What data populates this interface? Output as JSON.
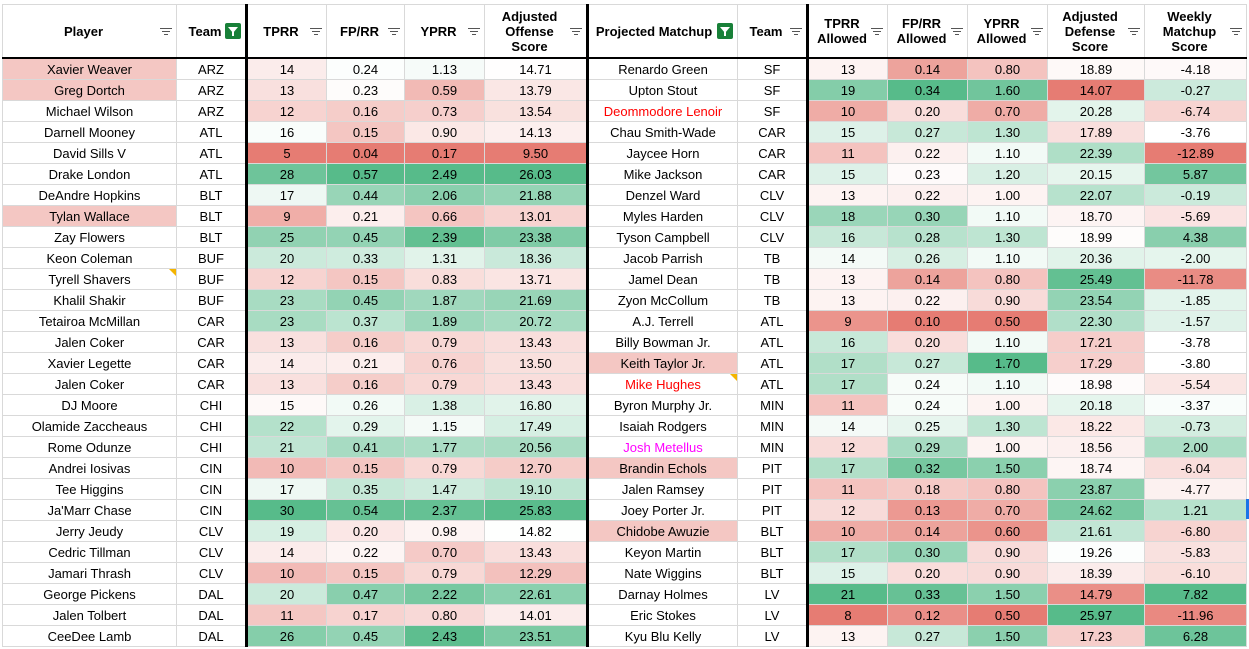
{
  "headers": {
    "player": "Player",
    "team": "Team",
    "tprr": "TPRR",
    "fprr": "FP/RR",
    "yprr": "YPRR",
    "aos_l1": "Adjusted",
    "aos_l2": "Offense",
    "aos_l3": "Score",
    "matchup": "Projected Matchup",
    "team2": "Team",
    "tprra_l1": "TPRR",
    "tprra_l2": "Allowed",
    "fprra_l1": "FP/RR",
    "fprra_l2": "Allowed",
    "yprra_l1": "YPRR",
    "yprra_l2": "Allowed",
    "ads_l1": "Adjusted",
    "ads_l2": "Defense",
    "ads_l3": "Score",
    "wms_l1": "Weekly",
    "wms_l2": "Matchup",
    "wms_l3": "Score"
  },
  "colors": {
    "red_max": "#e67c73",
    "green_max": "#57bb8a",
    "white": "#ffffff",
    "player_highlight": "#f4c7c3",
    "red_text": "#ff0000",
    "magenta_text": "#ff00ff",
    "filter_active": "#188038"
  },
  "rows": [
    {
      "player": "Xavier Weaver",
      "team": "ARZ",
      "tprr": "14",
      "fprr": "0.24",
      "yprr": "1.13",
      "aos": "14.71",
      "matchup": "Renardo Green",
      "team2": "SF",
      "tprra": "13",
      "fprra": "0.14",
      "yprra": "0.80",
      "ads": "18.89",
      "wms": "-4.18",
      "p_hl": true
    },
    {
      "player": "Greg Dortch",
      "team": "ARZ",
      "tprr": "13",
      "fprr": "0.23",
      "yprr": "0.59",
      "aos": "13.79",
      "matchup": "Upton Stout",
      "team2": "SF",
      "tprra": "19",
      "fprra": "0.34",
      "yprra": "1.60",
      "ads": "14.07",
      "wms": "-0.27",
      "p_hl": true
    },
    {
      "player": "Michael Wilson",
      "team": "ARZ",
      "tprr": "12",
      "fprr": "0.16",
      "yprr": "0.73",
      "aos": "13.54",
      "matchup": "Deommodore Lenoir",
      "team2": "SF",
      "tprra": "10",
      "fprra": "0.20",
      "yprra": "0.70",
      "ads": "20.28",
      "wms": "-6.74",
      "m_color": "red"
    },
    {
      "player": "Darnell Mooney",
      "team": "ATL",
      "tprr": "16",
      "fprr": "0.15",
      "yprr": "0.90",
      "aos": "14.13",
      "matchup": "Chau Smith-Wade",
      "team2": "CAR",
      "tprra": "15",
      "fprra": "0.27",
      "yprra": "1.30",
      "ads": "17.89",
      "wms": "-3.76"
    },
    {
      "player": "David Sills V",
      "team": "ATL",
      "tprr": "5",
      "fprr": "0.04",
      "yprr": "0.17",
      "aos": "9.50",
      "matchup": "Jaycee Horn",
      "team2": "CAR",
      "tprra": "11",
      "fprra": "0.22",
      "yprra": "1.10",
      "ads": "22.39",
      "wms": "-12.89"
    },
    {
      "player": "Drake London",
      "team": "ATL",
      "tprr": "28",
      "fprr": "0.57",
      "yprr": "2.49",
      "aos": "26.03",
      "matchup": "Mike Jackson",
      "team2": "CAR",
      "tprra": "15",
      "fprra": "0.23",
      "yprra": "1.20",
      "ads": "20.15",
      "wms": "5.87"
    },
    {
      "player": "DeAndre Hopkins",
      "team": "BLT",
      "tprr": "17",
      "fprr": "0.44",
      "yprr": "2.06",
      "aos": "21.88",
      "matchup": "Denzel Ward",
      "team2": "CLV",
      "tprra": "13",
      "fprra": "0.22",
      "yprra": "1.00",
      "ads": "22.07",
      "wms": "-0.19"
    },
    {
      "player": "Tylan Wallace",
      "team": "BLT",
      "tprr": "9",
      "fprr": "0.21",
      "yprr": "0.66",
      "aos": "13.01",
      "matchup": "Myles Harden",
      "team2": "CLV",
      "tprra": "18",
      "fprra": "0.30",
      "yprra": "1.10",
      "ads": "18.70",
      "wms": "-5.69",
      "p_hl": true
    },
    {
      "player": "Zay Flowers",
      "team": "BLT",
      "tprr": "25",
      "fprr": "0.45",
      "yprr": "2.39",
      "aos": "23.38",
      "matchup": "Tyson Campbell",
      "team2": "CLV",
      "tprra": "16",
      "fprra": "0.28",
      "yprra": "1.30",
      "ads": "18.99",
      "wms": "4.38"
    },
    {
      "player": "Keon Coleman",
      "team": "BUF",
      "tprr": "20",
      "fprr": "0.33",
      "yprr": "1.31",
      "aos": "18.36",
      "matchup": "Jacob Parrish",
      "team2": "TB",
      "tprra": "14",
      "fprra": "0.26",
      "yprra": "1.10",
      "ads": "20.36",
      "wms": "-2.00"
    },
    {
      "player": "Tyrell Shavers",
      "team": "BUF",
      "tprr": "12",
      "fprr": "0.15",
      "yprr": "0.83",
      "aos": "13.71",
      "matchup": "Jamel Dean",
      "team2": "TB",
      "tprra": "13",
      "fprra": "0.14",
      "yprra": "0.80",
      "ads": "25.49",
      "wms": "-11.78",
      "p_note": true
    },
    {
      "player": "Khalil Shakir",
      "team": "BUF",
      "tprr": "23",
      "fprr": "0.45",
      "yprr": "1.87",
      "aos": "21.69",
      "matchup": "Zyon McCollum",
      "team2": "TB",
      "tprra": "13",
      "fprra": "0.22",
      "yprra": "0.90",
      "ads": "23.54",
      "wms": "-1.85"
    },
    {
      "player": "Tetairoa McMillan",
      "team": "CAR",
      "tprr": "23",
      "fprr": "0.37",
      "yprr": "1.89",
      "aos": "20.72",
      "matchup": "A.J. Terrell",
      "team2": "ATL",
      "tprra": "9",
      "fprra": "0.10",
      "yprra": "0.50",
      "ads": "22.30",
      "wms": "-1.57"
    },
    {
      "player": "Jalen Coker",
      "team": "CAR",
      "tprr": "13",
      "fprr": "0.16",
      "yprr": "0.79",
      "aos": "13.43",
      "matchup": "Billy Bowman Jr.",
      "team2": "ATL",
      "tprra": "16",
      "fprra": "0.20",
      "yprra": "1.10",
      "ads": "17.21",
      "wms": "-3.78"
    },
    {
      "player": "Xavier Legette",
      "team": "CAR",
      "tprr": "14",
      "fprr": "0.21",
      "yprr": "0.76",
      "aos": "13.50",
      "matchup": "Keith Taylor Jr.",
      "team2": "ATL",
      "tprra": "17",
      "fprra": "0.27",
      "yprra": "1.70",
      "ads": "17.29",
      "wms": "-3.80",
      "m_hl": true
    },
    {
      "player": "Jalen Coker",
      "team": "CAR",
      "tprr": "13",
      "fprr": "0.16",
      "yprr": "0.79",
      "aos": "13.43",
      "matchup": "Mike Hughes",
      "team2": "ATL",
      "tprra": "17",
      "fprra": "0.24",
      "yprra": "1.10",
      "ads": "18.98",
      "wms": "-5.54",
      "m_color": "red",
      "m_note": true
    },
    {
      "player": "DJ Moore",
      "team": "CHI",
      "tprr": "15",
      "fprr": "0.26",
      "yprr": "1.38",
      "aos": "16.80",
      "matchup": "Byron Murphy Jr.",
      "team2": "MIN",
      "tprra": "11",
      "fprra": "0.24",
      "yprra": "1.00",
      "ads": "20.18",
      "wms": "-3.37"
    },
    {
      "player": "Olamide Zaccheaus",
      "team": "CHI",
      "tprr": "22",
      "fprr": "0.29",
      "yprr": "1.15",
      "aos": "17.49",
      "matchup": "Isaiah Rodgers",
      "team2": "MIN",
      "tprra": "14",
      "fprra": "0.25",
      "yprra": "1.30",
      "ads": "18.22",
      "wms": "-0.73"
    },
    {
      "player": "Rome Odunze",
      "team": "CHI",
      "tprr": "21",
      "fprr": "0.41",
      "yprr": "1.77",
      "aos": "20.56",
      "matchup": "Josh Metellus",
      "team2": "MIN",
      "tprra": "12",
      "fprra": "0.29",
      "yprra": "1.00",
      "ads": "18.56",
      "wms": "2.00",
      "m_color": "magenta"
    },
    {
      "player": "Andrei Iosivas",
      "team": "CIN",
      "tprr": "10",
      "fprr": "0.15",
      "yprr": "0.79",
      "aos": "12.70",
      "matchup": "Brandin Echols",
      "team2": "PIT",
      "tprra": "17",
      "fprra": "0.32",
      "yprra": "1.50",
      "ads": "18.74",
      "wms": "-6.04",
      "m_hl": true
    },
    {
      "player": "Tee Higgins",
      "team": "CIN",
      "tprr": "17",
      "fprr": "0.35",
      "yprr": "1.47",
      "aos": "19.10",
      "matchup": "Jalen Ramsey",
      "team2": "PIT",
      "tprra": "11",
      "fprra": "0.18",
      "yprra": "0.80",
      "ads": "23.87",
      "wms": "-4.77"
    },
    {
      "player": "Ja'Marr Chase",
      "team": "CIN",
      "tprr": "30",
      "fprr": "0.54",
      "yprr": "2.37",
      "aos": "25.83",
      "matchup": "Joey Porter Jr.",
      "team2": "PIT",
      "tprra": "12",
      "fprra": "0.13",
      "yprra": "0.70",
      "ads": "24.62",
      "wms": "1.21"
    },
    {
      "player": "Jerry Jeudy",
      "team": "CLV",
      "tprr": "19",
      "fprr": "0.20",
      "yprr": "0.98",
      "aos": "14.82",
      "matchup": "Chidobe Awuzie",
      "team2": "BLT",
      "tprra": "10",
      "fprra": "0.14",
      "yprra": "0.60",
      "ads": "21.61",
      "wms": "-6.80",
      "m_hl": true
    },
    {
      "player": "Cedric Tillman",
      "team": "CLV",
      "tprr": "14",
      "fprr": "0.22",
      "yprr": "0.70",
      "aos": "13.43",
      "matchup": "Keyon Martin",
      "team2": "BLT",
      "tprra": "17",
      "fprra": "0.30",
      "yprra": "0.90",
      "ads": "19.26",
      "wms": "-5.83"
    },
    {
      "player": "Jamari Thrash",
      "team": "CLV",
      "tprr": "10",
      "fprr": "0.15",
      "yprr": "0.79",
      "aos": "12.29",
      "matchup": "Nate Wiggins",
      "team2": "BLT",
      "tprra": "15",
      "fprra": "0.20",
      "yprra": "0.90",
      "ads": "18.39",
      "wms": "-6.10"
    },
    {
      "player": "George Pickens",
      "team": "DAL",
      "tprr": "20",
      "fprr": "0.47",
      "yprr": "2.22",
      "aos": "22.61",
      "matchup": "Darnay Holmes",
      "team2": "LV",
      "tprra": "21",
      "fprra": "0.33",
      "yprra": "1.50",
      "ads": "14.79",
      "wms": "7.82"
    },
    {
      "player": "Jalen Tolbert",
      "team": "DAL",
      "tprr": "11",
      "fprr": "0.17",
      "yprr": "0.80",
      "aos": "14.01",
      "matchup": "Eric Stokes",
      "team2": "LV",
      "tprra": "8",
      "fprra": "0.12",
      "yprra": "0.50",
      "ads": "25.97",
      "wms": "-11.96"
    },
    {
      "player": "CeeDee Lamb",
      "team": "DAL",
      "tprr": "26",
      "fprr": "0.45",
      "yprr": "2.43",
      "aos": "23.51",
      "matchup": "Kyu Blu Kelly",
      "team2": "LV",
      "tprra": "13",
      "fprra": "0.27",
      "yprra": "1.50",
      "ads": "17.23",
      "wms": "6.28"
    }
  ]
}
